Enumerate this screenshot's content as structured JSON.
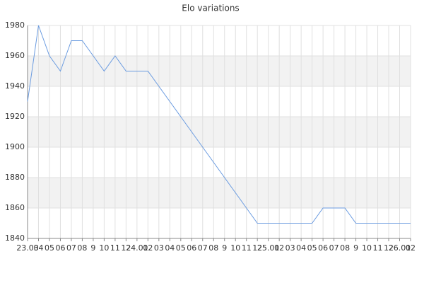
{
  "chart_data": {
    "type": "line",
    "title": "Elo variations",
    "categories": [
      "23.03",
      "04",
      "05",
      "06",
      "07",
      "08",
      "9",
      "10",
      "11",
      "12",
      "24.01",
      "02",
      "03",
      "04",
      "05",
      "06",
      "07",
      "08",
      "9",
      "10",
      "11",
      "12",
      "25.01",
      "02",
      "03",
      "04",
      "05",
      "06",
      "07",
      "08",
      "9",
      "10",
      "11",
      "12",
      "26.01",
      "02"
    ],
    "series": [
      {
        "color": "#6a9be0",
        "values": [
          1930,
          1980,
          1960,
          1950,
          1970,
          1970,
          1960,
          1950,
          1960,
          1950,
          1950,
          1950,
          1940,
          1930,
          1920,
          1910,
          1900,
          1890,
          1880,
          1870,
          1860,
          1850,
          1850,
          1850,
          1850,
          1850,
          1850,
          1860,
          1860,
          1860,
          1850,
          1850,
          1850,
          1850,
          1850,
          1850
        ]
      }
    ],
    "ylim": [
      1840,
      1980
    ],
    "yticks": [
      1840,
      1860,
      1880,
      1900,
      1920,
      1940,
      1960,
      1980
    ],
    "grid": true,
    "alternate_bands": true
  }
}
